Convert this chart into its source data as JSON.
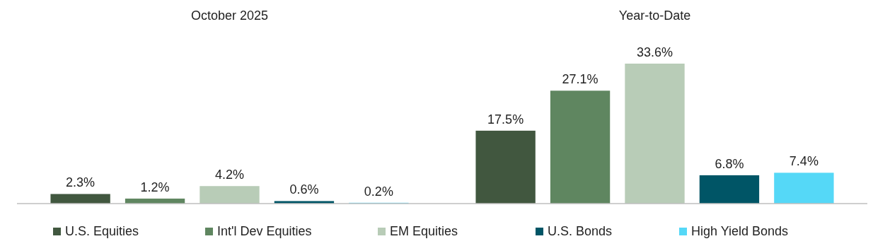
{
  "chart_data": {
    "type": "bar",
    "categories": [
      "October 2025",
      "Year-to-Date"
    ],
    "series": [
      {
        "name": "U.S. Equities",
        "color": "#41573f",
        "values": [
          2.3,
          17.5
        ],
        "value_labels": [
          "2.3%",
          "17.5%"
        ]
      },
      {
        "name": "Int'l Dev Equities",
        "color": "#5f8660",
        "values": [
          1.2,
          27.1
        ],
        "value_labels": [
          "1.2%",
          "27.1%"
        ]
      },
      {
        "name": "EM Equities",
        "color": "#b8ccb7",
        "values": [
          4.2,
          33.6
        ],
        "value_labels": [
          "4.2%",
          "33.6%"
        ]
      },
      {
        "name": "U.S. Bonds",
        "color": "#005566",
        "values": [
          0.6,
          6.8
        ],
        "value_labels": [
          "0.6%",
          "6.8%"
        ]
      },
      {
        "name": "High Yield Bonds",
        "color": "#55d8f7",
        "values": [
          0.2,
          7.4
        ],
        "value_labels": [
          "0.2%",
          "7.4%"
        ]
      }
    ],
    "legend": "bottom"
  }
}
